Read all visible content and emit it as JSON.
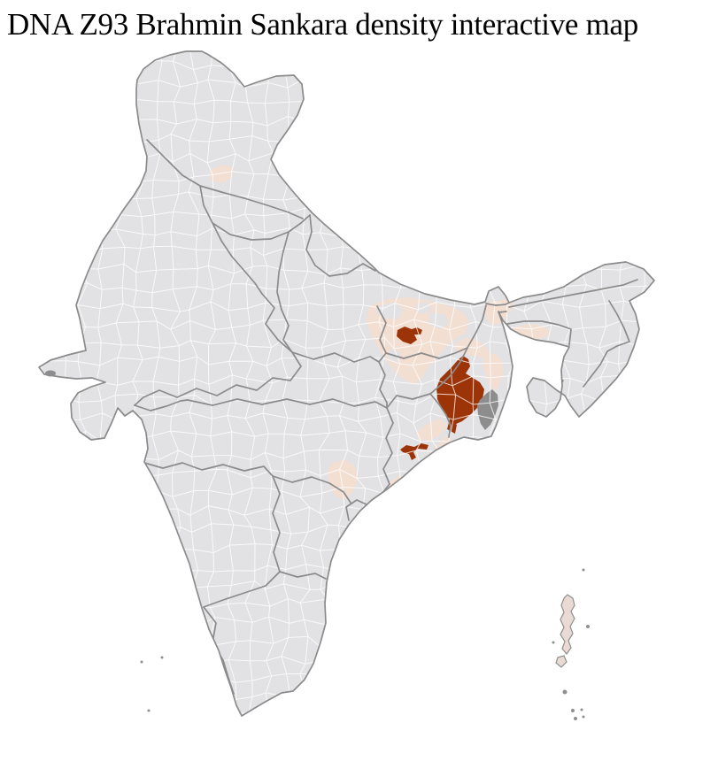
{
  "title": "DNA Z93 Brahmin Sankara density interactive map",
  "map": {
    "label": "india-district-choropleth",
    "palette": {
      "background": "#ffffff",
      "district_default": "#e2e2e4",
      "district_low": "#f3ded2",
      "district_high": "#9d3408",
      "district_no_data": "#8d8d8d",
      "district_border": "#ffffff",
      "state_border": "#8b8b8b",
      "island_fill": "#e9dbd3",
      "island_stroke": "#8f8f8f",
      "title_color": "#000000"
    },
    "regions": [
      {
        "id": "west-bengal-cluster",
        "density": "high"
      },
      {
        "id": "west-bengal-south-district",
        "density": "high"
      },
      {
        "id": "bihar-district",
        "density": "high"
      },
      {
        "id": "odisha-cuttack-district",
        "density": "high"
      },
      {
        "id": "sundarbans-delta",
        "density": "no_data"
      },
      {
        "id": "bihar-plains-belt",
        "density": "low"
      },
      {
        "id": "west-bengal-north",
        "density": "low"
      },
      {
        "id": "nadia-border-strip",
        "density": "low"
      },
      {
        "id": "siliguri-darjeeling",
        "density": "low"
      },
      {
        "id": "assam-west",
        "density": "low"
      },
      {
        "id": "meghalaya-district",
        "density": "low"
      },
      {
        "id": "odisha-coast",
        "density": "low"
      },
      {
        "id": "odisha-north",
        "density": "low"
      },
      {
        "id": "odisha-mid",
        "density": "low"
      },
      {
        "id": "odisha-inland",
        "density": "low"
      },
      {
        "id": "himachal-district",
        "density": "low"
      }
    ],
    "island_groups": [
      {
        "id": "andaman-nicobar-islands"
      },
      {
        "id": "lakshadweep-islands"
      },
      {
        "id": "kutch-island"
      }
    ]
  }
}
